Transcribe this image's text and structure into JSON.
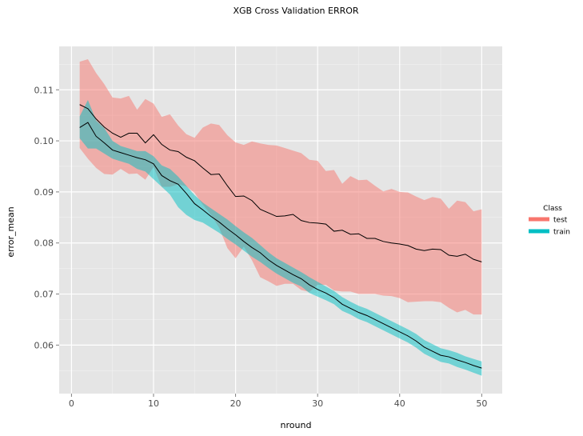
{
  "chart_data": {
    "type": "line",
    "title": "XGB Cross Validation ERROR",
    "xlabel": "nround",
    "ylabel": "error_mean",
    "xlim": [
      -1.5,
      52.5
    ],
    "ylim": [
      0.0505,
      0.1185
    ],
    "x_ticks": [
      0,
      10,
      20,
      30,
      40,
      50
    ],
    "y_ticks": [
      0.06,
      0.07,
      0.08,
      0.09,
      0.1,
      0.11
    ],
    "x_tick_labels": [
      "0",
      "10",
      "20",
      "30",
      "40",
      "50"
    ],
    "y_tick_labels": [
      "0.06",
      "0.07",
      "0.08",
      "0.09",
      "0.10",
      "0.11"
    ],
    "grid": true,
    "legend": {
      "title": "Class",
      "position": "right"
    },
    "series": [
      {
        "name": "test",
        "color": "#F8766D",
        "x": [
          1,
          2,
          3,
          4,
          5,
          6,
          7,
          8,
          9,
          10,
          11,
          12,
          13,
          14,
          15,
          16,
          17,
          18,
          19,
          20,
          21,
          22,
          23,
          24,
          25,
          26,
          27,
          28,
          29,
          30,
          31,
          32,
          33,
          34,
          35,
          36,
          37,
          38,
          39,
          40,
          41,
          42,
          43,
          44,
          45,
          46,
          47,
          48,
          49,
          50
        ],
        "mean": [
          0.1071,
          0.1063,
          0.1043,
          0.1027,
          0.1015,
          0.1007,
          0.1015,
          0.1015,
          0.0996,
          0.1012,
          0.0993,
          0.0982,
          0.0979,
          0.0968,
          0.0961,
          0.0947,
          0.0934,
          0.0935,
          0.0912,
          0.0891,
          0.0892,
          0.0883,
          0.0866,
          0.0859,
          0.0852,
          0.0853,
          0.0856,
          0.0844,
          0.084,
          0.0839,
          0.0837,
          0.0823,
          0.0825,
          0.0817,
          0.0818,
          0.0809,
          0.0809,
          0.0803,
          0.08,
          0.0798,
          0.0795,
          0.0788,
          0.0785,
          0.0788,
          0.0787,
          0.0776,
          0.0774,
          0.0778,
          0.0768,
          0.0763
        ],
        "upper": [
          0.1155,
          0.116,
          0.1133,
          0.1111,
          0.1085,
          0.1083,
          0.1088,
          0.1061,
          0.1082,
          0.1073,
          0.1047,
          0.1052,
          0.103,
          0.1013,
          0.1006,
          0.1026,
          0.1034,
          0.1031,
          0.1011,
          0.0997,
          0.0992,
          0.0999,
          0.0995,
          0.0992,
          0.0991,
          0.0986,
          0.0981,
          0.0976,
          0.0963,
          0.0961,
          0.0941,
          0.0943,
          0.0916,
          0.0931,
          0.0923,
          0.0924,
          0.0912,
          0.0901,
          0.0906,
          0.09,
          0.0899,
          0.0891,
          0.0884,
          0.089,
          0.0887,
          0.0867,
          0.0883,
          0.088,
          0.0862,
          0.0866
        ],
        "lower": [
          0.0986,
          0.0965,
          0.0947,
          0.0935,
          0.0934,
          0.0945,
          0.0935,
          0.0936,
          0.0924,
          0.0949,
          0.091,
          0.091,
          0.0915,
          0.0911,
          0.0898,
          0.0875,
          0.0855,
          0.083,
          0.079,
          0.077,
          0.0793,
          0.0766,
          0.0733,
          0.0725,
          0.0716,
          0.072,
          0.072,
          0.0708,
          0.0704,
          0.0718,
          0.0718,
          0.0707,
          0.0705,
          0.0705,
          0.07,
          0.07,
          0.07,
          0.0697,
          0.0696,
          0.0692,
          0.0684,
          0.0685,
          0.0686,
          0.0686,
          0.0684,
          0.0673,
          0.0664,
          0.0669,
          0.066,
          0.066
        ]
      },
      {
        "name": "train",
        "color": "#00BFC4",
        "x": [
          1,
          2,
          3,
          4,
          5,
          6,
          7,
          8,
          9,
          10,
          11,
          12,
          13,
          14,
          15,
          16,
          17,
          18,
          19,
          20,
          21,
          22,
          23,
          24,
          25,
          26,
          27,
          28,
          29,
          30,
          31,
          32,
          33,
          34,
          35,
          36,
          37,
          38,
          39,
          40,
          41,
          42,
          43,
          44,
          45,
          46,
          47,
          48,
          49,
          50
        ],
        "mean": [
          0.1026,
          0.1036,
          0.1009,
          0.0996,
          0.0982,
          0.0977,
          0.0972,
          0.0967,
          0.0963,
          0.0955,
          0.0932,
          0.0922,
          0.0915,
          0.0897,
          0.0877,
          0.0865,
          0.0852,
          0.0841,
          0.0828,
          0.0816,
          0.0803,
          0.0791,
          0.0781,
          0.0767,
          0.0756,
          0.0747,
          0.0738,
          0.073,
          0.0718,
          0.0709,
          0.0702,
          0.0693,
          0.068,
          0.0672,
          0.0664,
          0.0658,
          0.065,
          0.0642,
          0.0634,
          0.0626,
          0.0618,
          0.0608,
          0.0596,
          0.0588,
          0.058,
          0.0577,
          0.0571,
          0.0566,
          0.056,
          0.0555
        ],
        "upper": [
          0.1048,
          0.108,
          0.104,
          0.1025,
          0.1,
          0.099,
          0.0985,
          0.098,
          0.098,
          0.097,
          0.0952,
          0.0945,
          0.093,
          0.0912,
          0.0894,
          0.0879,
          0.0868,
          0.0857,
          0.0846,
          0.0833,
          0.0821,
          0.081,
          0.0796,
          0.0782,
          0.077,
          0.0761,
          0.0752,
          0.0743,
          0.0733,
          0.0724,
          0.0715,
          0.0706,
          0.0694,
          0.0685,
          0.0677,
          0.0671,
          0.0663,
          0.0655,
          0.0647,
          0.0639,
          0.0631,
          0.0622,
          0.061,
          0.0602,
          0.0594,
          0.059,
          0.0585,
          0.0578,
          0.0573,
          0.0568
        ],
        "lower": [
          0.1005,
          0.0985,
          0.0985,
          0.0975,
          0.0965,
          0.096,
          0.0955,
          0.0945,
          0.094,
          0.0925,
          0.091,
          0.0895,
          0.087,
          0.0855,
          0.0845,
          0.084,
          0.083,
          0.082,
          0.0808,
          0.0797,
          0.0785,
          0.0773,
          0.0763,
          0.0751,
          0.074,
          0.0731,
          0.0722,
          0.0715,
          0.0702,
          0.0695,
          0.0688,
          0.068,
          0.0667,
          0.066,
          0.0651,
          0.0645,
          0.0637,
          0.0629,
          0.0621,
          0.0613,
          0.0605,
          0.0595,
          0.0583,
          0.0575,
          0.0567,
          0.0564,
          0.0557,
          0.0552,
          0.0546,
          0.054
        ]
      }
    ]
  }
}
